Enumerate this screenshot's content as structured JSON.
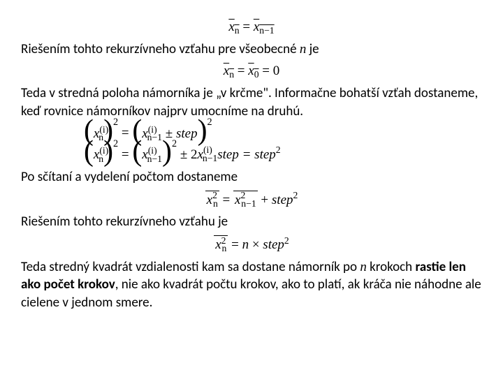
{
  "eq1": {
    "lhs_var": "x",
    "lhs_sub": "n",
    "rhs_var": "x",
    "rhs_sub": "n−1"
  },
  "p1": {
    "a": "Riešením tohto rekurzívneho vzťahu pre všeobecné ",
    "n": "n",
    "b": " je"
  },
  "eq2": {
    "l": "x",
    "lsub": "n",
    "m": "x",
    "msub": "0",
    "tail": " = 0"
  },
  "p2": "Teda v stredná poloha námorníka je „v krčme\". Informačne bohatší vzťah dostaneme, keď rovnice námorníkov najprv umocníme na druhú.",
  "eq3": {
    "x": "x",
    "i": "(i)",
    "n": "n",
    "nm1": "n−1",
    "step": "step",
    "pm": "±",
    "eq": "=",
    "sq": "2",
    "two": "2",
    "sq2tail": "step = step",
    "sq_last": "2"
  },
  "p3": "Po sčítaní a vydelení počtom dostaneme",
  "eq4": {
    "x": "x",
    "n": "n",
    "nm1": "n−1",
    "eq": "=",
    "plus": "+",
    "step": "step",
    "sq": "2"
  },
  "p4": "Riešením tohto rekurzívneho vzťahu je",
  "eq5": {
    "x": "x",
    "n": "n",
    "eq": "=",
    "nvar": "n",
    "times": "×",
    "step": "step",
    "sq": "2"
  },
  "p5": {
    "a": "Teda stredný kvadrát vzdialenosti kam sa dostane námorník po ",
    "n": "n",
    "b": " krokoch ",
    "bold": "rastie len ako počet krokov",
    "c": ", nie ako kvadrát počtu krokov, ako to platí, ak kráča nie náhodne ale cielene v jednom smere."
  }
}
